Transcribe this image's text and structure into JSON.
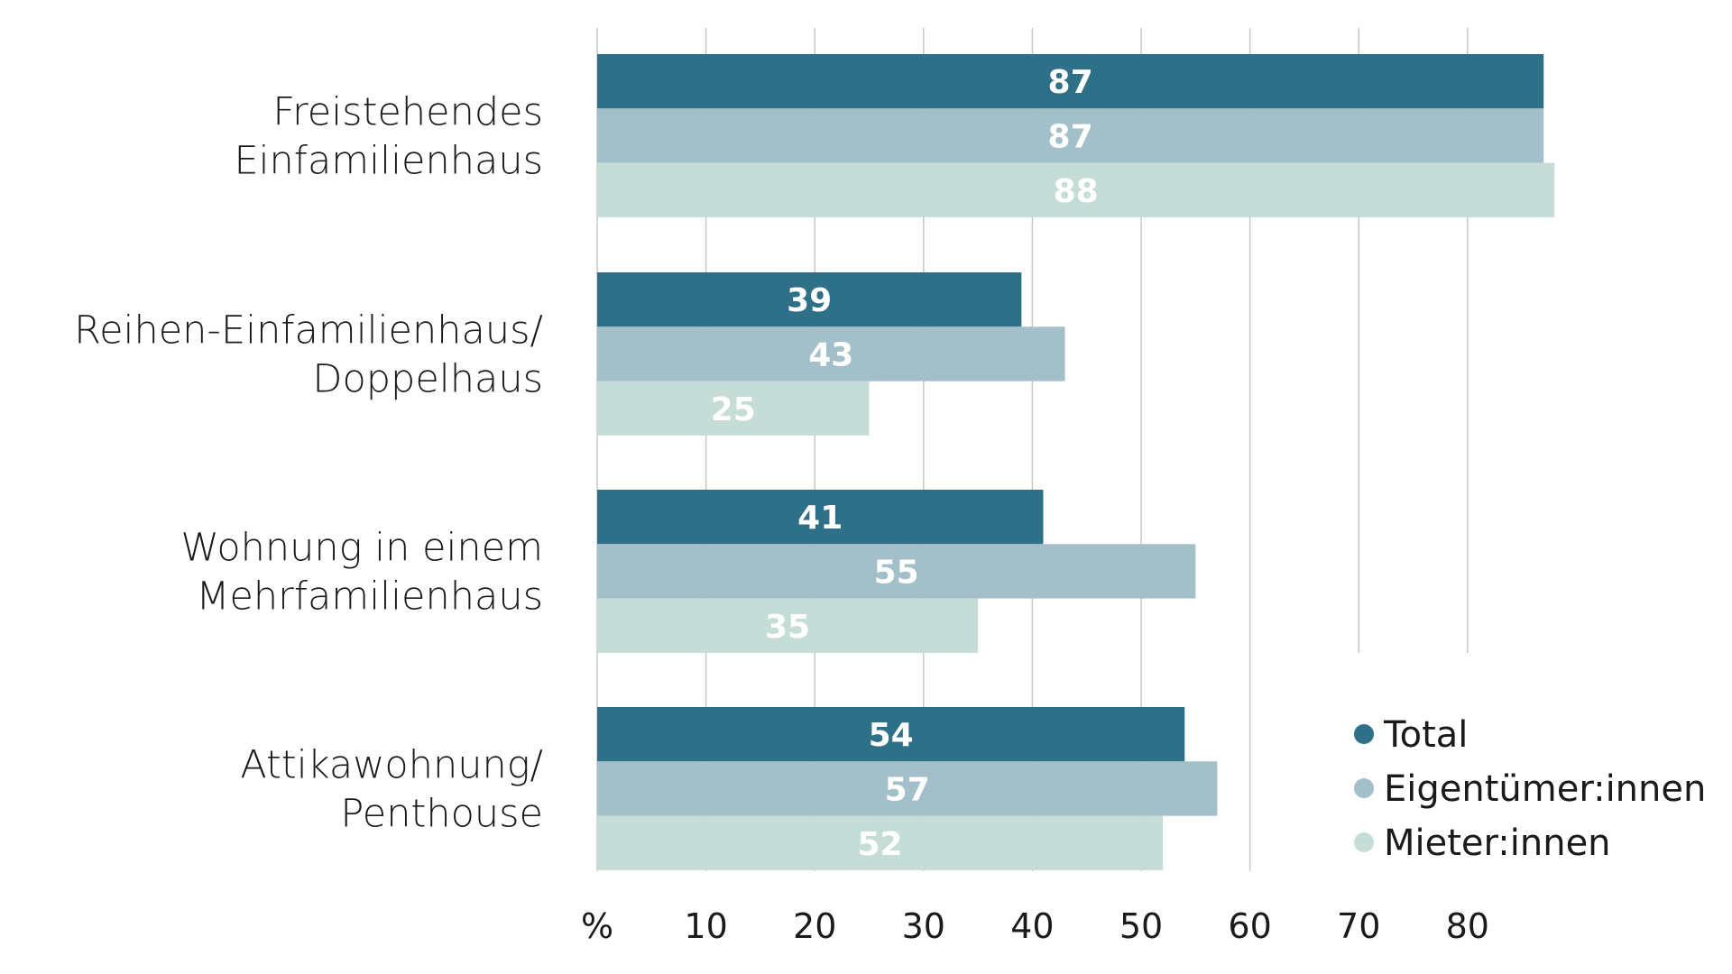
{
  "chart_data": {
    "type": "bar",
    "orientation": "horizontal",
    "title": "",
    "xlabel": "",
    "ylabel": "",
    "categories": [
      [
        "Freistehendes",
        "Einfamilienhaus"
      ],
      [
        "Reihen-Einfamilienhaus/",
        "Doppelhaus"
      ],
      [
        "Wohnung in einem",
        "Mehrfamilienhaus"
      ],
      [
        "Attikawohnung/",
        "Penthouse"
      ]
    ],
    "series": [
      {
        "name": "Total",
        "color": "#2e7088",
        "values": [
          87,
          39,
          41,
          54
        ]
      },
      {
        "name": "Eigentümer:innen",
        "color": "#a3bfca",
        "values": [
          87,
          43,
          55,
          57
        ]
      },
      {
        "name": "Mieter:innen",
        "color": "#c6ddd7",
        "values": [
          88,
          25,
          35,
          52
        ]
      }
    ],
    "x_ticks": [
      "%",
      "10",
      "20",
      "30",
      "40",
      "50",
      "60",
      "70",
      "80"
    ],
    "x_tick_values": [
      0,
      10,
      20,
      30,
      40,
      50,
      60,
      70,
      80
    ],
    "xlim": [
      0,
      90
    ],
    "grid": true,
    "legend_position": "bottom-right",
    "data_labels": true
  }
}
